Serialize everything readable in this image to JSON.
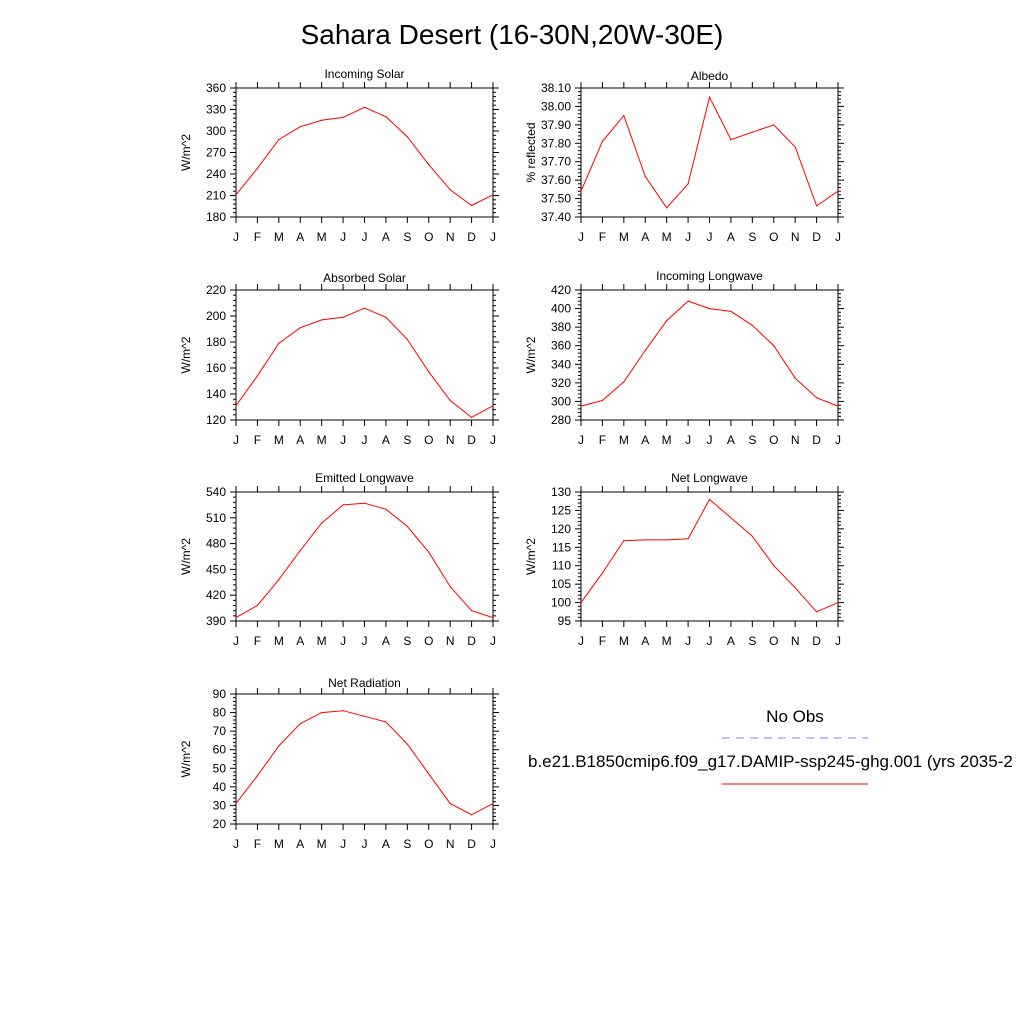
{
  "page": {
    "title": "Sahara Desert (16-30N,20W-30E)"
  },
  "chart_data": [
    {
      "type": "line",
      "title": "Incoming Solar",
      "ylabel": "W/m^2",
      "categories": [
        "J",
        "F",
        "M",
        "A",
        "M",
        "J",
        "J",
        "A",
        "S",
        "O",
        "N",
        "D",
        "J"
      ],
      "ylim": [
        180,
        360
      ],
      "yticks": [
        "180",
        "210",
        "240",
        "270",
        "300",
        "330",
        "360"
      ],
      "series": [
        {
          "values": [
            211,
            248,
            288,
            306,
            315,
            319,
            333,
            320,
            292,
            253,
            218,
            196,
            211
          ]
        }
      ]
    },
    {
      "type": "line",
      "title": "Albedo",
      "ylabel": "% reflected",
      "categories": [
        "J",
        "F",
        "M",
        "A",
        "M",
        "J",
        "J",
        "A",
        "S",
        "O",
        "N",
        "D",
        "J"
      ],
      "ylim": [
        37.4,
        38.1
      ],
      "yticks": [
        "37.40",
        "37.50",
        "37.60",
        "37.70",
        "37.80",
        "37.90",
        "38.00",
        "38.10"
      ],
      "series": [
        {
          "values": [
            37.54,
            37.81,
            37.95,
            37.62,
            37.45,
            37.58,
            38.05,
            37.82,
            37.86,
            37.9,
            37.78,
            37.46,
            37.54
          ]
        }
      ]
    },
    {
      "type": "line",
      "title": "Absorbed Solar",
      "ylabel": "W/m^2",
      "categories": [
        "J",
        "F",
        "M",
        "A",
        "M",
        "J",
        "J",
        "A",
        "S",
        "O",
        "N",
        "D",
        "J"
      ],
      "ylim": [
        120,
        220
      ],
      "yticks": [
        "120",
        "140",
        "160",
        "180",
        "200",
        "220"
      ],
      "series": [
        {
          "values": [
            131,
            154,
            179,
            191,
            197,
            199,
            206,
            199,
            182,
            157,
            135,
            122,
            131
          ]
        }
      ]
    },
    {
      "type": "line",
      "title": "Incoming Longwave",
      "ylabel": "W/m^2",
      "categories": [
        "J",
        "F",
        "M",
        "A",
        "M",
        "J",
        "J",
        "A",
        "S",
        "O",
        "N",
        "D",
        "J"
      ],
      "ylim": [
        280,
        420
      ],
      "yticks": [
        "280",
        "300",
        "320",
        "340",
        "360",
        "380",
        "400",
        "420"
      ],
      "series": [
        {
          "values": [
            295,
            301,
            321,
            355,
            387,
            408,
            400,
            397,
            382,
            360,
            325,
            304,
            295
          ]
        }
      ]
    },
    {
      "type": "line",
      "title": "Emitted Longwave",
      "ylabel": "W/m^2",
      "categories": [
        "J",
        "F",
        "M",
        "A",
        "M",
        "J",
        "J",
        "A",
        "S",
        "O",
        "N",
        "D",
        "J"
      ],
      "ylim": [
        390,
        540
      ],
      "yticks": [
        "390",
        "420",
        "450",
        "480",
        "510",
        "540"
      ],
      "series": [
        {
          "values": [
            394,
            408,
            438,
            472,
            504,
            525,
            527,
            520,
            500,
            470,
            430,
            402,
            394
          ]
        }
      ]
    },
    {
      "type": "line",
      "title": "Net Longwave",
      "ylabel": "W/m^2",
      "categories": [
        "J",
        "F",
        "M",
        "A",
        "M",
        "J",
        "J",
        "A",
        "S",
        "O",
        "N",
        "D",
        "J"
      ],
      "ylim": [
        95,
        130
      ],
      "yticks": [
        "95",
        "100",
        "105",
        "110",
        "115",
        "120",
        "125",
        "130"
      ],
      "series": [
        {
          "values": [
            100,
            108,
            116.8,
            117,
            117,
            117.3,
            128,
            123,
            118,
            110,
            104,
            97.5,
            100
          ]
        }
      ]
    },
    {
      "type": "line",
      "title": "Net Radiation",
      "ylabel": "W/m^2",
      "categories": [
        "J",
        "F",
        "M",
        "A",
        "M",
        "J",
        "J",
        "A",
        "S",
        "O",
        "N",
        "D",
        "J"
      ],
      "ylim": [
        20,
        90
      ],
      "yticks": [
        "20",
        "30",
        "40",
        "50",
        "60",
        "70",
        "80",
        "90"
      ],
      "series": [
        {
          "values": [
            31,
            46,
            62,
            74,
            80,
            81,
            78,
            75,
            63,
            47,
            31,
            25,
            31
          ]
        }
      ]
    }
  ],
  "legend": {
    "obs_label": "No Obs",
    "obs_color": "#8080ff",
    "model_label": "b.e21.B1850cmip6.f09_g17.DAMIP-ssp245-ghg.001 (yrs 2035-2",
    "model_color": "#ff0000"
  },
  "colors": {
    "series": "#ff0000",
    "axis": "#000000"
  }
}
